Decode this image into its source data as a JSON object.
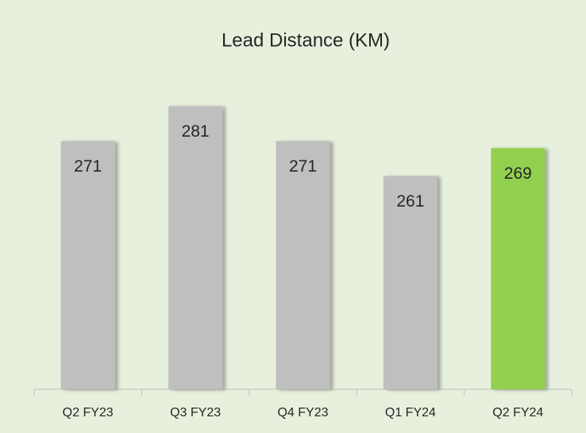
{
  "chart_data": {
    "type": "bar",
    "title": "Lead Distance (KM)",
    "categories": [
      "Q2 FY23",
      "Q3 FY23",
      "Q4 FY23",
      "Q1 FY24",
      "Q2 FY24"
    ],
    "values": [
      271,
      281,
      271,
      261,
      269
    ],
    "colors": [
      "#bfbfbf",
      "#bfbfbf",
      "#bfbfbf",
      "#bfbfbf",
      "#92d050"
    ],
    "ylim": [
      200,
      290
    ]
  }
}
